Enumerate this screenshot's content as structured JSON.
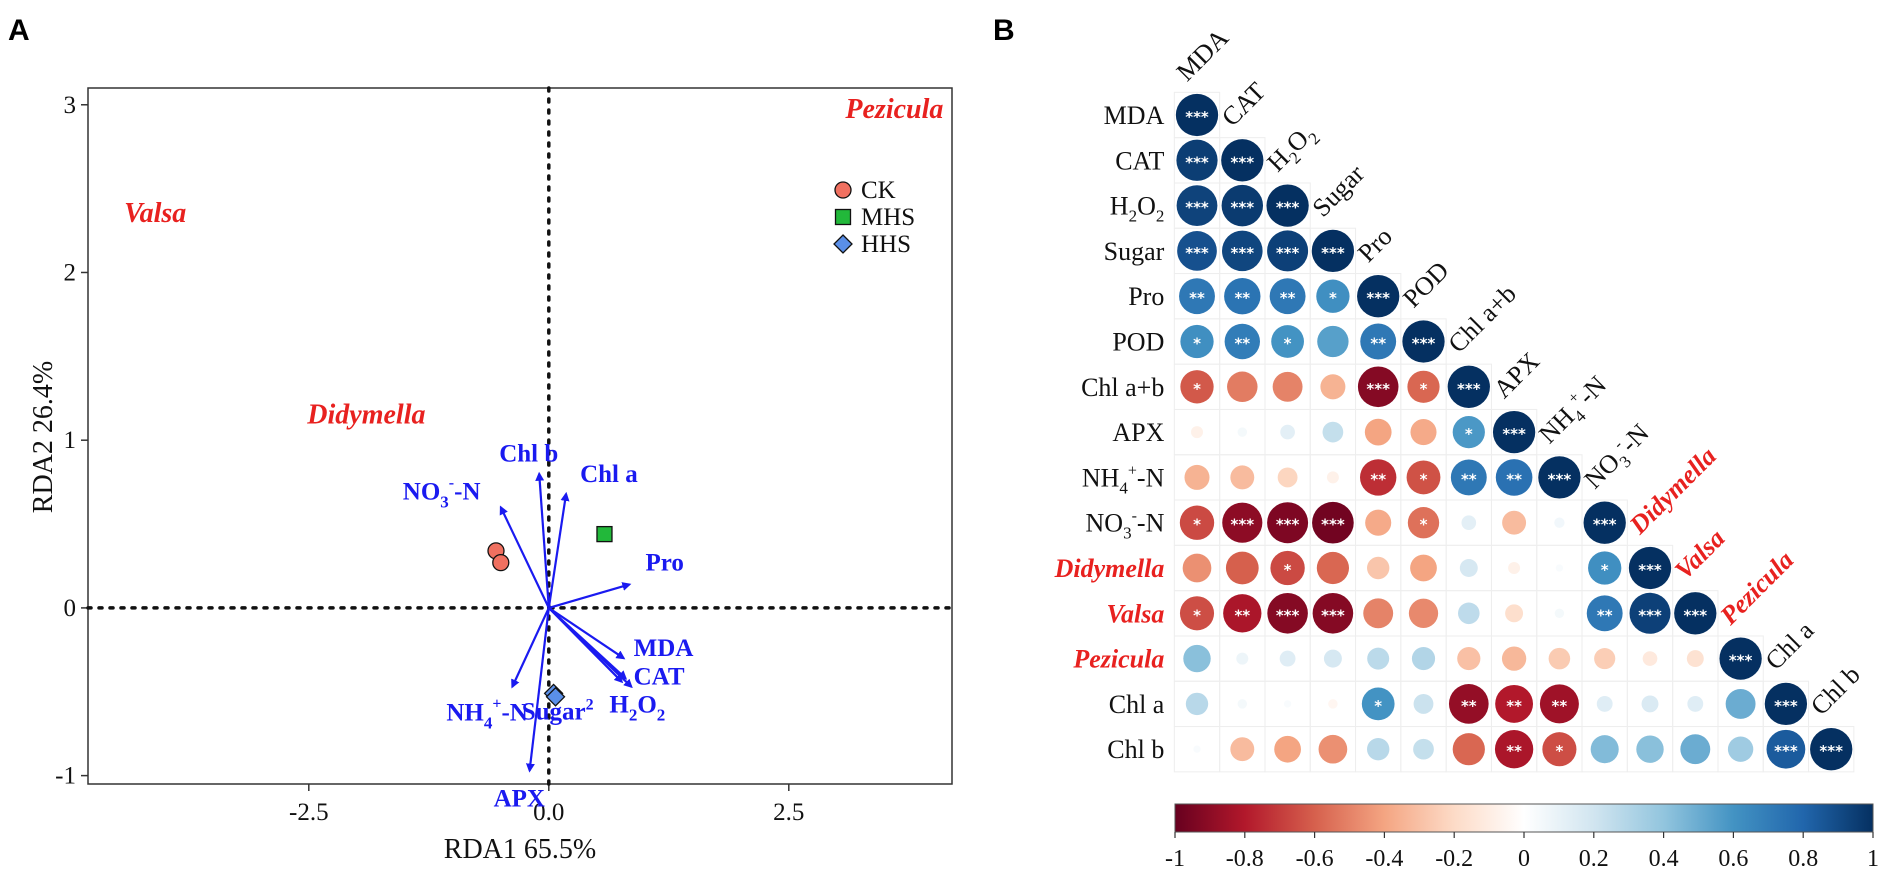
{
  "panel_labels": {
    "a": "A",
    "b": "B"
  },
  "chart_data": [
    {
      "type": "scatter",
      "subtype": "rda-biplot",
      "title": "",
      "xlabel": "RDA1 65.5%",
      "ylabel": "RDA2 26.4%",
      "xlim": [
        -4.8,
        4.2
      ],
      "ylim": [
        -1.05,
        3.1
      ],
      "x_ticks": [
        -2.5,
        0.0,
        2.5
      ],
      "x_tick_labels": [
        "-2.5",
        "0.0",
        "2.5"
      ],
      "y_ticks": [
        -1,
        0,
        1,
        2,
        3
      ],
      "y_tick_labels": [
        "-1",
        "0",
        "1",
        "2",
        "3"
      ],
      "reference_lines": {
        "x": 0,
        "y": 0,
        "style": "dotted"
      },
      "legend": {
        "position": "top-right",
        "entries": [
          {
            "name": "CK",
            "shape": "circle",
            "color": "#f07060"
          },
          {
            "name": "MHS",
            "shape": "square",
            "color": "#22b83a"
          },
          {
            "name": "HHS",
            "shape": "diamond",
            "color": "#5a8fe8"
          }
        ]
      },
      "series": [
        {
          "name": "CK",
          "points": [
            {
              "x": -0.55,
              "y": 0.34
            },
            {
              "x": -0.5,
              "y": 0.27
            }
          ]
        },
        {
          "name": "MHS",
          "points": [
            {
              "x": 0.58,
              "y": 0.44
            }
          ]
        },
        {
          "name": "HHS",
          "points": [
            {
              "x": 0.05,
              "y": -0.51
            },
            {
              "x": 0.07,
              "y": -0.53
            }
          ]
        }
      ],
      "species": [
        {
          "name": "Pezicula",
          "x": 3.6,
          "y": 2.92
        },
        {
          "name": "Valsa",
          "x": -4.1,
          "y": 2.3
        },
        {
          "name": "Didymella",
          "x": -1.9,
          "y": 1.1
        }
      ],
      "vectors": [
        {
          "name": "Chl b",
          "display": "Chl b",
          "x": -0.1,
          "y": 0.8
        },
        {
          "name": "Chl a",
          "display": "Chl a",
          "x": 0.18,
          "y": 0.68
        },
        {
          "name": "NO3--N",
          "display": "NO3-N",
          "sub": "3",
          "sup": "-",
          "x": -0.5,
          "y": 0.6
        },
        {
          "name": "Pro",
          "display": "Pro",
          "x": 0.84,
          "y": 0.14
        },
        {
          "name": "MDA",
          "display": "MDA",
          "x": 0.78,
          "y": -0.3
        },
        {
          "name": "CAT",
          "display": "CAT",
          "x": 0.8,
          "y": -0.42
        },
        {
          "name": "H2O2",
          "display": "H2O2",
          "x": 0.86,
          "y": -0.47
        },
        {
          "name": "Sugar",
          "display": "Sugar",
          "x": 0.76,
          "y": -0.44
        },
        {
          "name": "NH4+-N",
          "display": "NH4-N",
          "sub": "4",
          "sup": "+",
          "x": -0.38,
          "y": -0.47
        },
        {
          "name": "APX",
          "display": "APX",
          "x": -0.2,
          "y": -0.97
        }
      ]
    },
    {
      "type": "heatmap",
      "subtype": "correlation-circle-matrix-lower",
      "title": "",
      "variables": [
        "MDA",
        "CAT",
        "H2O2",
        "Sugar",
        "Pro",
        "POD",
        "Chl a+b",
        "APX",
        "NH4+-N",
        "NO3--N",
        "Didymella",
        "Valsa",
        "Pezicula",
        "Chl a",
        "Chl b"
      ],
      "species_variables": [
        "Didymella",
        "Valsa",
        "Pezicula"
      ],
      "value_range": [
        -1,
        1
      ],
      "colorbar": {
        "ticks": [
          -1,
          -0.8,
          -0.6,
          -0.4,
          -0.2,
          0,
          0.2,
          0.4,
          0.6,
          0.8,
          1
        ],
        "tick_labels": [
          "-1",
          "-0.8",
          "-0.6",
          "-0.4",
          "-0.2",
          "0",
          "0.2",
          "0.4",
          "0.6",
          "0.8",
          "1"
        ]
      },
      "matrix": [
        [
          1
        ],
        [
          0.95,
          1
        ],
        [
          0.93,
          0.96,
          1
        ],
        [
          0.88,
          0.92,
          0.94,
          1
        ],
        [
          0.72,
          0.74,
          0.72,
          0.62,
          1
        ],
        [
          0.62,
          0.7,
          0.6,
          0.55,
          0.72,
          1
        ],
        [
          -0.62,
          -0.52,
          -0.5,
          -0.35,
          -0.92,
          -0.58,
          1
        ],
        [
          -0.08,
          0.05,
          0.12,
          0.24,
          -0.4,
          -0.38,
          0.58,
          1
        ],
        [
          -0.35,
          -0.32,
          -0.22,
          -0.08,
          -0.74,
          -0.64,
          0.72,
          0.75,
          1
        ],
        [
          -0.66,
          -0.9,
          -0.94,
          -0.97,
          -0.38,
          -0.55,
          0.12,
          -0.32,
          0.06,
          1
        ],
        [
          -0.46,
          -0.6,
          -0.66,
          -0.58,
          -0.28,
          -0.4,
          0.18,
          -0.08,
          0.03,
          0.62,
          1
        ],
        [
          -0.65,
          -0.82,
          -0.92,
          -0.92,
          -0.5,
          -0.48,
          0.26,
          -0.18,
          0.05,
          0.72,
          0.94,
          1
        ],
        [
          0.42,
          0.08,
          0.14,
          0.18,
          0.27,
          0.3,
          -0.3,
          -0.33,
          -0.26,
          -0.25,
          -0.12,
          -0.16,
          1
        ],
        [
          0.28,
          0.05,
          0.03,
          -0.05,
          0.6,
          0.22,
          -0.88,
          -0.8,
          -0.85,
          0.14,
          0.16,
          0.14,
          0.5,
          1
        ],
        [
          0.03,
          -0.32,
          -0.4,
          -0.46,
          0.28,
          0.24,
          -0.58,
          -0.82,
          -0.65,
          0.44,
          0.42,
          0.5,
          0.36,
          0.84,
          1
        ]
      ],
      "significance": [
        [
          "***"
        ],
        [
          "***",
          "***"
        ],
        [
          "***",
          "***",
          "***"
        ],
        [
          "***",
          "***",
          "***",
          "***"
        ],
        [
          "**",
          "**",
          "**",
          "*",
          "***"
        ],
        [
          "*",
          "**",
          "*",
          "",
          "**",
          "***"
        ],
        [
          "*",
          "",
          "",
          "",
          "***",
          "*",
          "***"
        ],
        [
          "",
          "",
          "",
          "",
          "",
          "",
          "*",
          "***"
        ],
        [
          "",
          "",
          "",
          "",
          "**",
          "*",
          "**",
          "**",
          "***"
        ],
        [
          "*",
          "***",
          "***",
          "***",
          "",
          "*",
          "",
          "",
          "",
          "***"
        ],
        [
          "",
          "",
          "*",
          "",
          "",
          "",
          "",
          "",
          "",
          "*",
          "***"
        ],
        [
          "*",
          "**",
          "***",
          "***",
          "",
          "",
          "",
          "",
          "",
          "**",
          "***",
          "***"
        ],
        [
          "",
          "",
          "",
          "",
          "",
          "",
          "",
          "",
          "",
          "",
          "",
          "",
          "***"
        ],
        [
          "",
          "",
          "",
          "",
          "*",
          "",
          "**",
          "**",
          "**",
          "",
          "",
          "",
          "",
          "***"
        ],
        [
          "",
          "",
          "",
          "",
          "",
          "",
          "",
          "**",
          "*",
          "",
          "",
          "",
          "",
          "***",
          "***"
        ]
      ]
    }
  ]
}
